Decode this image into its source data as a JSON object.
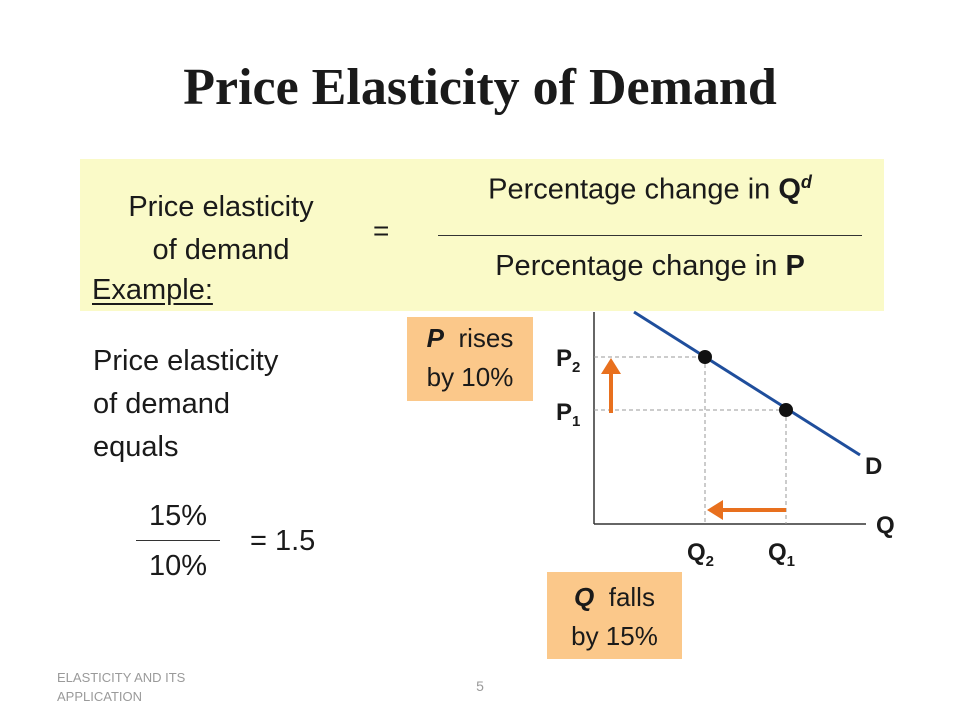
{
  "slide": {
    "title": "Price Elasticity of Demand",
    "page_number": "5",
    "footer_line1": "ELASTICITY AND ITS",
    "footer_line2": "APPLICATION"
  },
  "formula": {
    "lhs_line1": "Price elasticity",
    "lhs_line2": "of demand",
    "equals": "=",
    "numerator_text": "Percentage change in ",
    "numerator_var": "Q",
    "numerator_sup": "d",
    "denominator_text": "Percentage change in ",
    "denominator_var": "P"
  },
  "example": {
    "heading": "Example:",
    "line1": "Price elasticity",
    "line2": "of demand",
    "line3": "equals",
    "numerator": "15%",
    "denominator": "10%",
    "result": "= 1.5"
  },
  "callouts": {
    "p_var": "P",
    "p_text": "rises",
    "p_text2": "by 10%",
    "q_var": "Q",
    "q_text": "falls",
    "q_text2": "by 15%"
  },
  "graph": {
    "p2_label": "P",
    "p2_sub": "2",
    "p1_label": "P",
    "p1_sub": "1",
    "q2_label": "Q",
    "q2_sub": "2",
    "q1_label": "Q",
    "q1_sub": "1",
    "curve_label": "D",
    "x_axis_label": "Q"
  },
  "colors": {
    "formula_box": "#fafac8",
    "callout": "#fbc88a",
    "arrow": "#e8701e",
    "demand_curve": "#1f4e9c"
  }
}
